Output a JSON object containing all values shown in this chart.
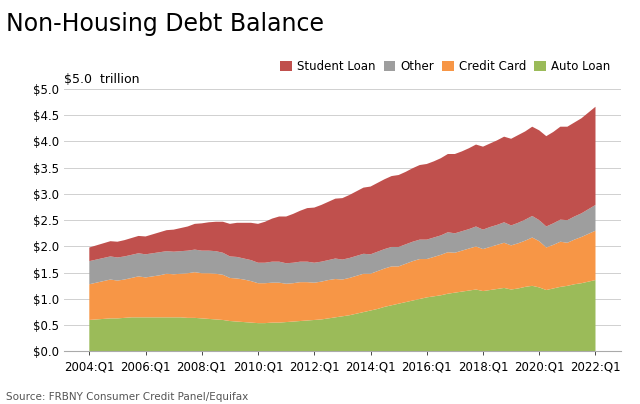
{
  "title": "Non-Housing Debt Balance",
  "ylabel_label": "$5.0  trillion",
  "source": "Source: FRBNY Consumer Credit Panel/Equifax",
  "ylim": [
    0,
    5.0
  ],
  "yticks": [
    0.0,
    0.5,
    1.0,
    1.5,
    2.0,
    2.5,
    3.0,
    3.5,
    4.0,
    4.5,
    5.0
  ],
  "colors_order": [
    "#c0504d",
    "#9e9e9e",
    "#f79646",
    "#9bbb59"
  ],
  "x_labels": [
    "2004:Q1",
    "2006:Q1",
    "2008:Q1",
    "2010:Q1",
    "2012:Q1",
    "2014:Q1",
    "2016:Q1",
    "2018:Q1",
    "2020:Q1",
    "2022:Q1"
  ],
  "auto_loan": [
    0.6,
    0.61,
    0.62,
    0.63,
    0.63,
    0.64,
    0.65,
    0.65,
    0.65,
    0.65,
    0.65,
    0.65,
    0.65,
    0.65,
    0.64,
    0.64,
    0.63,
    0.62,
    0.61,
    0.6,
    0.58,
    0.57,
    0.56,
    0.55,
    0.54,
    0.54,
    0.55,
    0.55,
    0.56,
    0.57,
    0.58,
    0.59,
    0.6,
    0.61,
    0.63,
    0.65,
    0.67,
    0.69,
    0.72,
    0.75,
    0.78,
    0.81,
    0.85,
    0.88,
    0.91,
    0.94,
    0.97,
    1.0,
    1.03,
    1.05,
    1.07,
    1.1,
    1.12,
    1.14,
    1.16,
    1.18,
    1.15,
    1.17,
    1.19,
    1.21,
    1.18,
    1.2,
    1.23,
    1.25,
    1.22,
    1.17,
    1.2,
    1.23,
    1.25,
    1.28,
    1.3,
    1.33,
    1.36
  ],
  "credit_card": [
    0.68,
    0.7,
    0.72,
    0.74,
    0.72,
    0.73,
    0.75,
    0.78,
    0.76,
    0.78,
    0.8,
    0.83,
    0.82,
    0.83,
    0.85,
    0.87,
    0.86,
    0.87,
    0.87,
    0.86,
    0.82,
    0.82,
    0.81,
    0.79,
    0.76,
    0.76,
    0.76,
    0.76,
    0.73,
    0.73,
    0.74,
    0.73,
    0.71,
    0.72,
    0.73,
    0.73,
    0.7,
    0.71,
    0.72,
    0.73,
    0.7,
    0.72,
    0.73,
    0.74,
    0.71,
    0.73,
    0.75,
    0.76,
    0.73,
    0.75,
    0.77,
    0.79,
    0.76,
    0.78,
    0.8,
    0.82,
    0.8,
    0.82,
    0.84,
    0.86,
    0.84,
    0.86,
    0.88,
    0.92,
    0.88,
    0.81,
    0.83,
    0.86,
    0.82,
    0.85,
    0.88,
    0.91,
    0.94
  ],
  "other": [
    0.44,
    0.44,
    0.44,
    0.44,
    0.44,
    0.44,
    0.44,
    0.44,
    0.44,
    0.44,
    0.44,
    0.43,
    0.43,
    0.43,
    0.43,
    0.43,
    0.43,
    0.43,
    0.43,
    0.42,
    0.41,
    0.41,
    0.4,
    0.4,
    0.39,
    0.39,
    0.4,
    0.4,
    0.39,
    0.39,
    0.39,
    0.39,
    0.38,
    0.38,
    0.38,
    0.39,
    0.38,
    0.38,
    0.38,
    0.38,
    0.37,
    0.37,
    0.37,
    0.37,
    0.37,
    0.37,
    0.37,
    0.37,
    0.37,
    0.37,
    0.37,
    0.38,
    0.37,
    0.37,
    0.37,
    0.38,
    0.37,
    0.38,
    0.38,
    0.39,
    0.38,
    0.39,
    0.4,
    0.41,
    0.4,
    0.4,
    0.41,
    0.42,
    0.43,
    0.44,
    0.45,
    0.47,
    0.49
  ],
  "student_loan": [
    0.26,
    0.27,
    0.28,
    0.29,
    0.3,
    0.31,
    0.32,
    0.33,
    0.34,
    0.36,
    0.38,
    0.4,
    0.42,
    0.44,
    0.46,
    0.49,
    0.52,
    0.54,
    0.56,
    0.59,
    0.62,
    0.65,
    0.68,
    0.71,
    0.74,
    0.78,
    0.82,
    0.86,
    0.89,
    0.93,
    0.97,
    1.02,
    1.05,
    1.08,
    1.11,
    1.14,
    1.17,
    1.2,
    1.23,
    1.26,
    1.29,
    1.31,
    1.33,
    1.35,
    1.37,
    1.38,
    1.4,
    1.42,
    1.44,
    1.45,
    1.47,
    1.49,
    1.51,
    1.52,
    1.54,
    1.56,
    1.58,
    1.59,
    1.61,
    1.63,
    1.65,
    1.67,
    1.68,
    1.7,
    1.71,
    1.72,
    1.74,
    1.77,
    1.78,
    1.79,
    1.81,
    1.84,
    1.87
  ],
  "background_color": "#ffffff",
  "grid_color": "#d0d0d0",
  "title_fontsize": 17,
  "label_fontsize": 9,
  "tick_fontsize": 8.5
}
